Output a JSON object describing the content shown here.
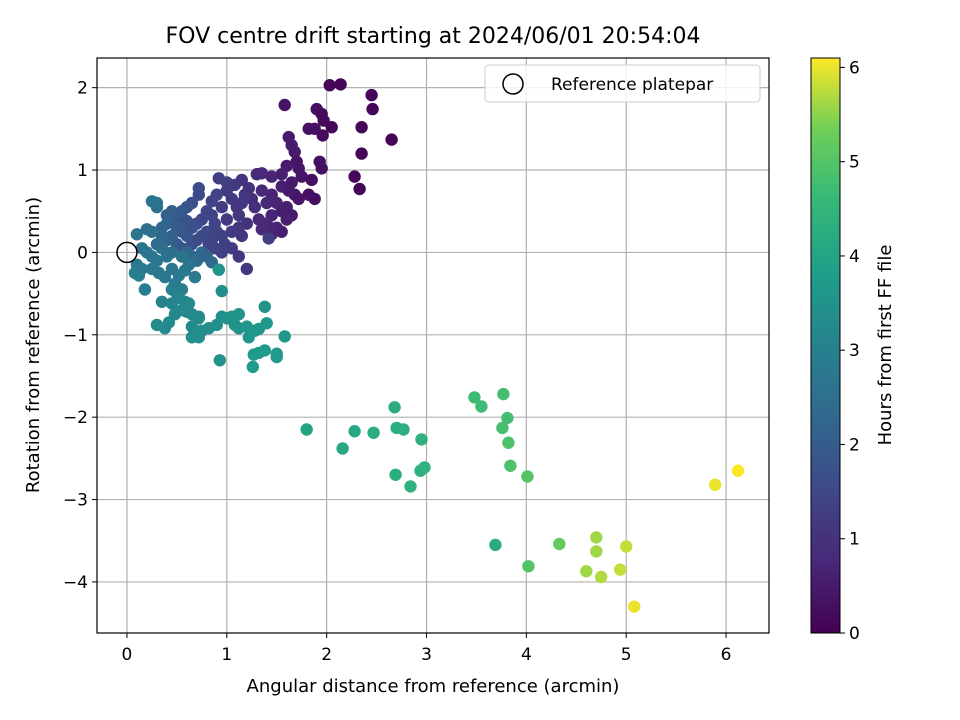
{
  "chart_data": {
    "type": "scatter",
    "title": "FOV centre drift starting at 2024/06/01 20:54:04",
    "xlabel": "Angular distance from reference (arcmin)",
    "ylabel": "Rotation from reference (arcmin)",
    "xlim": [
      -0.3,
      6.43
    ],
    "ylim": [
      -4.62,
      2.36
    ],
    "xticks": [
      0,
      1,
      2,
      3,
      4,
      5,
      6
    ],
    "yticks": [
      -4,
      -3,
      -2,
      -1,
      0,
      1,
      2
    ],
    "grid": true,
    "legend": {
      "placement": "top-right",
      "entries": [
        "Reference platepar"
      ]
    },
    "reference": {
      "x": 0,
      "y": 0,
      "label": "Reference platepar"
    },
    "colorbar": {
      "label": "Hours from first FF file",
      "range": [
        0,
        6.1
      ],
      "ticks": [
        0,
        1,
        2,
        3,
        4,
        5,
        6
      ],
      "colormap": "viridis"
    },
    "points": [
      {
        "x": 2.03,
        "y": 2.03,
        "c": 0.1
      },
      {
        "x": 2.14,
        "y": 2.04,
        "c": 0.1
      },
      {
        "x": 2.45,
        "y": 1.91,
        "c": 0.1
      },
      {
        "x": 2.46,
        "y": 1.74,
        "c": 0.1
      },
      {
        "x": 1.58,
        "y": 1.79,
        "c": 0.4
      },
      {
        "x": 1.9,
        "y": 1.74,
        "c": 0.3
      },
      {
        "x": 1.95,
        "y": 1.68,
        "c": 0.2
      },
      {
        "x": 1.97,
        "y": 1.6,
        "c": 0.2
      },
      {
        "x": 2.05,
        "y": 1.52,
        "c": 0.1
      },
      {
        "x": 1.82,
        "y": 1.5,
        "c": 0.3
      },
      {
        "x": 1.88,
        "y": 1.5,
        "c": 0.3
      },
      {
        "x": 2.35,
        "y": 1.52,
        "c": 0.1
      },
      {
        "x": 1.62,
        "y": 1.4,
        "c": 0.5
      },
      {
        "x": 1.65,
        "y": 1.3,
        "c": 0.5
      },
      {
        "x": 1.68,
        "y": 1.22,
        "c": 0.5
      },
      {
        "x": 2.65,
        "y": 1.37,
        "c": 0.1
      },
      {
        "x": 1.96,
        "y": 1.42,
        "c": 0.2
      },
      {
        "x": 2.35,
        "y": 1.2,
        "c": 0.1
      },
      {
        "x": 1.7,
        "y": 1.1,
        "c": 0.4
      },
      {
        "x": 1.93,
        "y": 1.1,
        "c": 0.3
      },
      {
        "x": 1.95,
        "y": 1.02,
        "c": 0.3
      },
      {
        "x": 1.72,
        "y": 1.02,
        "c": 0.4
      },
      {
        "x": 1.6,
        "y": 1.05,
        "c": 0.5
      },
      {
        "x": 1.55,
        "y": 0.95,
        "c": 0.6
      },
      {
        "x": 1.3,
        "y": 0.95,
        "c": 0.8
      },
      {
        "x": 1.35,
        "y": 0.96,
        "c": 0.8
      },
      {
        "x": 1.45,
        "y": 0.92,
        "c": 0.7
      },
      {
        "x": 1.75,
        "y": 0.92,
        "c": 0.4
      },
      {
        "x": 1.85,
        "y": 0.88,
        "c": 0.3
      },
      {
        "x": 2.28,
        "y": 0.92,
        "c": 0.1
      },
      {
        "x": 2.33,
        "y": 0.77,
        "c": 0.1
      },
      {
        "x": 1.65,
        "y": 0.85,
        "c": 0.5
      },
      {
        "x": 1.55,
        "y": 0.8,
        "c": 0.6
      },
      {
        "x": 1.62,
        "y": 0.75,
        "c": 0.5
      },
      {
        "x": 1.68,
        "y": 0.7,
        "c": 0.5
      },
      {
        "x": 1.72,
        "y": 0.65,
        "c": 0.4
      },
      {
        "x": 1.82,
        "y": 0.7,
        "c": 0.3
      },
      {
        "x": 1.88,
        "y": 0.65,
        "c": 0.3
      },
      {
        "x": 1.35,
        "y": 0.75,
        "c": 0.8
      },
      {
        "x": 1.45,
        "y": 0.7,
        "c": 0.7
      },
      {
        "x": 1.25,
        "y": 0.65,
        "c": 0.9
      },
      {
        "x": 1.28,
        "y": 0.55,
        "c": 0.9
      },
      {
        "x": 1.4,
        "y": 0.6,
        "c": 0.8
      },
      {
        "x": 1.5,
        "y": 0.6,
        "c": 0.7
      },
      {
        "x": 1.6,
        "y": 0.55,
        "c": 0.6
      },
      {
        "x": 1.55,
        "y": 0.5,
        "c": 0.6
      },
      {
        "x": 1.45,
        "y": 0.45,
        "c": 0.7
      },
      {
        "x": 1.65,
        "y": 0.45,
        "c": 0.5
      },
      {
        "x": 1.6,
        "y": 0.4,
        "c": 0.6
      },
      {
        "x": 1.32,
        "y": 0.4,
        "c": 0.8
      },
      {
        "x": 1.4,
        "y": 0.35,
        "c": 0.8
      },
      {
        "x": 1.5,
        "y": 0.3,
        "c": 0.7
      },
      {
        "x": 1.55,
        "y": 0.25,
        "c": 0.6
      },
      {
        "x": 1.45,
        "y": 0.22,
        "c": 0.7
      },
      {
        "x": 1.35,
        "y": 0.28,
        "c": 0.8
      },
      {
        "x": 1.42,
        "y": 0.17,
        "c": 1.3
      },
      {
        "x": 1.2,
        "y": 0.35,
        "c": 1.0
      },
      {
        "x": 1.12,
        "y": 0.45,
        "c": 1.1
      },
      {
        "x": 1.1,
        "y": 0.55,
        "c": 1.1
      },
      {
        "x": 1.05,
        "y": 0.65,
        "c": 1.2
      },
      {
        "x": 1.0,
        "y": 0.75,
        "c": 1.2
      },
      {
        "x": 1.0,
        "y": 0.85,
        "c": 1.3
      },
      {
        "x": 0.92,
        "y": 0.9,
        "c": 1.3
      },
      {
        "x": 1.08,
        "y": 0.82,
        "c": 1.2
      },
      {
        "x": 1.15,
        "y": 0.88,
        "c": 1.1
      },
      {
        "x": 1.18,
        "y": 0.7,
        "c": 1.1
      },
      {
        "x": 1.22,
        "y": 0.78,
        "c": 1.0
      },
      {
        "x": 1.15,
        "y": 0.6,
        "c": 1.1
      },
      {
        "x": 1.12,
        "y": 0.3,
        "c": 1.1
      },
      {
        "x": 1.05,
        "y": 0.25,
        "c": 1.2
      },
      {
        "x": 1.15,
        "y": 0.2,
        "c": 1.1
      },
      {
        "x": 1.0,
        "y": 0.4,
        "c": 1.2
      },
      {
        "x": 0.95,
        "y": 0.55,
        "c": 1.3
      },
      {
        "x": 0.9,
        "y": 0.7,
        "c": 1.4
      },
      {
        "x": 0.85,
        "y": 0.62,
        "c": 1.4
      },
      {
        "x": 0.8,
        "y": 0.5,
        "c": 1.5
      },
      {
        "x": 0.72,
        "y": 0.78,
        "c": 1.6
      },
      {
        "x": 0.72,
        "y": 0.7,
        "c": 1.6
      },
      {
        "x": 0.65,
        "y": 0.6,
        "c": 1.7
      },
      {
        "x": 0.6,
        "y": 0.55,
        "c": 1.8
      },
      {
        "x": 0.55,
        "y": 0.5,
        "c": 1.9
      },
      {
        "x": 0.5,
        "y": 0.42,
        "c": 2.0
      },
      {
        "x": 0.45,
        "y": 0.5,
        "c": 2.0
      },
      {
        "x": 0.4,
        "y": 0.45,
        "c": 2.1
      },
      {
        "x": 0.4,
        "y": 0.35,
        "c": 2.2
      },
      {
        "x": 0.35,
        "y": 0.3,
        "c": 2.3
      },
      {
        "x": 0.3,
        "y": 0.55,
        "c": 2.5
      },
      {
        "x": 0.3,
        "y": 0.6,
        "c": 2.6
      },
      {
        "x": 0.25,
        "y": 0.62,
        "c": 2.6
      },
      {
        "x": 0.85,
        "y": 0.45,
        "c": 1.4
      },
      {
        "x": 0.88,
        "y": 0.35,
        "c": 1.4
      },
      {
        "x": 0.75,
        "y": 0.4,
        "c": 1.5
      },
      {
        "x": 0.7,
        "y": 0.35,
        "c": 1.6
      },
      {
        "x": 0.65,
        "y": 0.3,
        "c": 1.7
      },
      {
        "x": 0.6,
        "y": 0.38,
        "c": 1.8
      },
      {
        "x": 0.55,
        "y": 0.35,
        "c": 1.8
      },
      {
        "x": 0.8,
        "y": 0.25,
        "c": 1.5
      },
      {
        "x": 0.75,
        "y": 0.2,
        "c": 1.6
      },
      {
        "x": 0.85,
        "y": 0.15,
        "c": 1.4
      },
      {
        "x": 0.9,
        "y": 0.25,
        "c": 1.4
      },
      {
        "x": 0.95,
        "y": 0.2,
        "c": 1.3
      },
      {
        "x": 0.98,
        "y": 0.1,
        "c": 1.3
      },
      {
        "x": 1.05,
        "y": 0.05,
        "c": 1.2
      },
      {
        "x": 1.12,
        "y": -0.05,
        "c": 1.1
      },
      {
        "x": 1.2,
        "y": -0.2,
        "c": 1.1
      },
      {
        "x": 0.95,
        "y": 0.0,
        "c": 1.3
      },
      {
        "x": 0.88,
        "y": 0.05,
        "c": 1.4
      },
      {
        "x": 0.82,
        "y": 0.1,
        "c": 1.4
      },
      {
        "x": 0.7,
        "y": 0.15,
        "c": 1.6
      },
      {
        "x": 0.65,
        "y": 0.1,
        "c": 1.7
      },
      {
        "x": 0.6,
        "y": 0.2,
        "c": 1.8
      },
      {
        "x": 0.55,
        "y": 0.25,
        "c": 1.9
      },
      {
        "x": 0.5,
        "y": 0.3,
        "c": 2.0
      },
      {
        "x": 0.45,
        "y": 0.2,
        "c": 2.1
      },
      {
        "x": 0.5,
        "y": 0.1,
        "c": 2.0
      },
      {
        "x": 0.55,
        "y": 0.05,
        "c": 1.9
      },
      {
        "x": 0.6,
        "y": 0.0,
        "c": 2.2
      },
      {
        "x": 0.65,
        "y": -0.05,
        "c": 2.3
      },
      {
        "x": 0.7,
        "y": -0.1,
        "c": 2.4
      },
      {
        "x": 0.75,
        "y": 0.0,
        "c": 2.3
      },
      {
        "x": 0.8,
        "y": -0.05,
        "c": 2.2
      },
      {
        "x": 0.85,
        "y": -0.12,
        "c": 2.3
      },
      {
        "x": 0.4,
        "y": 0.15,
        "c": 2.2
      },
      {
        "x": 0.35,
        "y": 0.2,
        "c": 2.3
      },
      {
        "x": 0.3,
        "y": 0.1,
        "c": 2.4
      },
      {
        "x": 0.25,
        "y": 0.25,
        "c": 2.5
      },
      {
        "x": 0.2,
        "y": 0.28,
        "c": 2.5
      },
      {
        "x": 0.1,
        "y": 0.22,
        "c": 2.7
      },
      {
        "x": 0.15,
        "y": 0.05,
        "c": 2.6
      },
      {
        "x": 0.2,
        "y": 0.0,
        "c": 2.6
      },
      {
        "x": 0.25,
        "y": -0.05,
        "c": 2.7
      },
      {
        "x": 0.3,
        "y": -0.1,
        "c": 2.7
      },
      {
        "x": 0.4,
        "y": -0.05,
        "c": 2.6
      },
      {
        "x": 0.45,
        "y": 0.0,
        "c": 2.5
      },
      {
        "x": 0.35,
        "y": 0.05,
        "c": 2.5
      },
      {
        "x": 0.55,
        "y": -0.05,
        "c": 2.6
      },
      {
        "x": 0.1,
        "y": -0.15,
        "c": 2.8
      },
      {
        "x": 0.15,
        "y": -0.2,
        "c": 2.8
      },
      {
        "x": 0.08,
        "y": -0.25,
        "c": 2.9
      },
      {
        "x": 0.12,
        "y": -0.28,
        "c": 2.9
      },
      {
        "x": 0.18,
        "y": -0.45,
        "c": 2.9
      },
      {
        "x": 0.25,
        "y": -0.2,
        "c": 2.8
      },
      {
        "x": 0.32,
        "y": -0.25,
        "c": 2.8
      },
      {
        "x": 0.38,
        "y": -0.3,
        "c": 2.8
      },
      {
        "x": 0.45,
        "y": -0.2,
        "c": 2.7
      },
      {
        "x": 0.48,
        "y": -0.38,
        "c": 2.9
      },
      {
        "x": 0.52,
        "y": -0.28,
        "c": 2.8
      },
      {
        "x": 0.58,
        "y": -0.22,
        "c": 2.8
      },
      {
        "x": 0.62,
        "y": -0.15,
        "c": 2.7
      },
      {
        "x": 0.68,
        "y": -0.3,
        "c": 2.8
      },
      {
        "x": 0.55,
        "y": -0.45,
        "c": 2.9
      },
      {
        "x": 0.5,
        "y": -0.5,
        "c": 3.0
      },
      {
        "x": 0.45,
        "y": -0.45,
        "c": 3.0
      },
      {
        "x": 0.35,
        "y": -0.6,
        "c": 3.1
      },
      {
        "x": 0.45,
        "y": -0.62,
        "c": 3.1
      },
      {
        "x": 0.52,
        "y": -0.55,
        "c": 3.1
      },
      {
        "x": 0.58,
        "y": -0.6,
        "c": 3.1
      },
      {
        "x": 0.62,
        "y": -0.62,
        "c": 3.2
      },
      {
        "x": 0.55,
        "y": -0.7,
        "c": 3.2
      },
      {
        "x": 0.48,
        "y": -0.75,
        "c": 3.2
      },
      {
        "x": 0.42,
        "y": -0.85,
        "c": 3.3
      },
      {
        "x": 0.38,
        "y": -0.92,
        "c": 3.3
      },
      {
        "x": 0.3,
        "y": -0.88,
        "c": 3.3
      },
      {
        "x": 0.6,
        "y": -0.72,
        "c": 3.2
      },
      {
        "x": 0.65,
        "y": -0.75,
        "c": 3.2
      },
      {
        "x": 0.72,
        "y": -0.8,
        "c": 3.3
      },
      {
        "x": 0.65,
        "y": -0.9,
        "c": 3.3
      },
      {
        "x": 0.68,
        "y": -0.98,
        "c": 3.3
      },
      {
        "x": 0.75,
        "y": -0.95,
        "c": 3.4
      },
      {
        "x": 0.72,
        "y": -1.03,
        "c": 3.4
      },
      {
        "x": 0.65,
        "y": -1.03,
        "c": 3.4
      },
      {
        "x": 0.82,
        "y": -0.92,
        "c": 3.4
      },
      {
        "x": 0.9,
        "y": -0.88,
        "c": 3.4
      },
      {
        "x": 0.95,
        "y": -0.78,
        "c": 3.4
      },
      {
        "x": 1.0,
        "y": -0.8,
        "c": 3.5
      },
      {
        "x": 1.05,
        "y": -0.78,
        "c": 3.5
      },
      {
        "x": 1.12,
        "y": -0.75,
        "c": 3.5
      },
      {
        "x": 1.08,
        "y": -0.88,
        "c": 3.5
      },
      {
        "x": 1.12,
        "y": -0.92,
        "c": 3.5
      },
      {
        "x": 1.2,
        "y": -0.9,
        "c": 3.6
      },
      {
        "x": 1.22,
        "y": -1.03,
        "c": 3.6
      },
      {
        "x": 1.28,
        "y": -0.95,
        "c": 3.6
      },
      {
        "x": 1.32,
        "y": -0.93,
        "c": 3.6
      },
      {
        "x": 1.38,
        "y": -0.66,
        "c": 3.5
      },
      {
        "x": 1.4,
        "y": -0.86,
        "c": 3.6
      },
      {
        "x": 1.58,
        "y": -1.02,
        "c": 3.6
      },
      {
        "x": 1.27,
        "y": -1.24,
        "c": 3.7
      },
      {
        "x": 1.32,
        "y": -1.22,
        "c": 3.7
      },
      {
        "x": 1.38,
        "y": -1.19,
        "c": 3.7
      },
      {
        "x": 1.5,
        "y": -1.23,
        "c": 3.7
      },
      {
        "x": 1.5,
        "y": -1.27,
        "c": 3.7
      },
      {
        "x": 1.26,
        "y": -1.39,
        "c": 3.7
      },
      {
        "x": 0.93,
        "y": -1.31,
        "c": 3.5
      },
      {
        "x": 0.95,
        "y": -0.47,
        "c": 3.4
      },
      {
        "x": 0.92,
        "y": -0.21,
        "c": 3.5
      },
      {
        "x": 0.72,
        "y": -0.78,
        "c": 3.3
      },
      {
        "x": 1.8,
        "y": -2.15,
        "c": 4.0
      },
      {
        "x": 2.16,
        "y": -2.38,
        "c": 4.1
      },
      {
        "x": 2.28,
        "y": -2.17,
        "c": 4.1
      },
      {
        "x": 2.47,
        "y": -2.19,
        "c": 4.2
      },
      {
        "x": 2.68,
        "y": -1.88,
        "c": 4.2
      },
      {
        "x": 2.7,
        "y": -2.13,
        "c": 4.3
      },
      {
        "x": 2.77,
        "y": -2.15,
        "c": 4.3
      },
      {
        "x": 2.69,
        "y": -2.7,
        "c": 4.3
      },
      {
        "x": 2.84,
        "y": -2.84,
        "c": 4.4
      },
      {
        "x": 2.94,
        "y": -2.65,
        "c": 4.4
      },
      {
        "x": 2.98,
        "y": -2.61,
        "c": 4.4
      },
      {
        "x": 2.95,
        "y": -2.27,
        "c": 4.4
      },
      {
        "x": 3.48,
        "y": -1.76,
        "c": 4.7
      },
      {
        "x": 3.55,
        "y": -1.87,
        "c": 4.7
      },
      {
        "x": 3.77,
        "y": -1.72,
        "c": 4.8
      },
      {
        "x": 3.76,
        "y": -2.13,
        "c": 4.8
      },
      {
        "x": 3.81,
        "y": -2.01,
        "c": 4.8
      },
      {
        "x": 3.82,
        "y": -2.31,
        "c": 4.9
      },
      {
        "x": 3.84,
        "y": -2.59,
        "c": 4.9
      },
      {
        "x": 4.01,
        "y": -2.72,
        "c": 5.0
      },
      {
        "x": 3.69,
        "y": -3.55,
        "c": 4.2
      },
      {
        "x": 4.02,
        "y": -3.81,
        "c": 5.0
      },
      {
        "x": 4.33,
        "y": -3.54,
        "c": 5.2
      },
      {
        "x": 4.6,
        "y": -3.87,
        "c": 5.6
      },
      {
        "x": 4.7,
        "y": -3.46,
        "c": 5.6
      },
      {
        "x": 4.7,
        "y": -3.63,
        "c": 5.6
      },
      {
        "x": 4.75,
        "y": -3.94,
        "c": 5.7
      },
      {
        "x": 4.94,
        "y": -3.85,
        "c": 5.8
      },
      {
        "x": 5.0,
        "y": -3.57,
        "c": 5.8
      },
      {
        "x": 5.08,
        "y": -4.3,
        "c": 6.0
      },
      {
        "x": 5.89,
        "y": -2.82,
        "c": 6.0
      },
      {
        "x": 6.12,
        "y": -2.65,
        "c": 6.1
      }
    ]
  }
}
